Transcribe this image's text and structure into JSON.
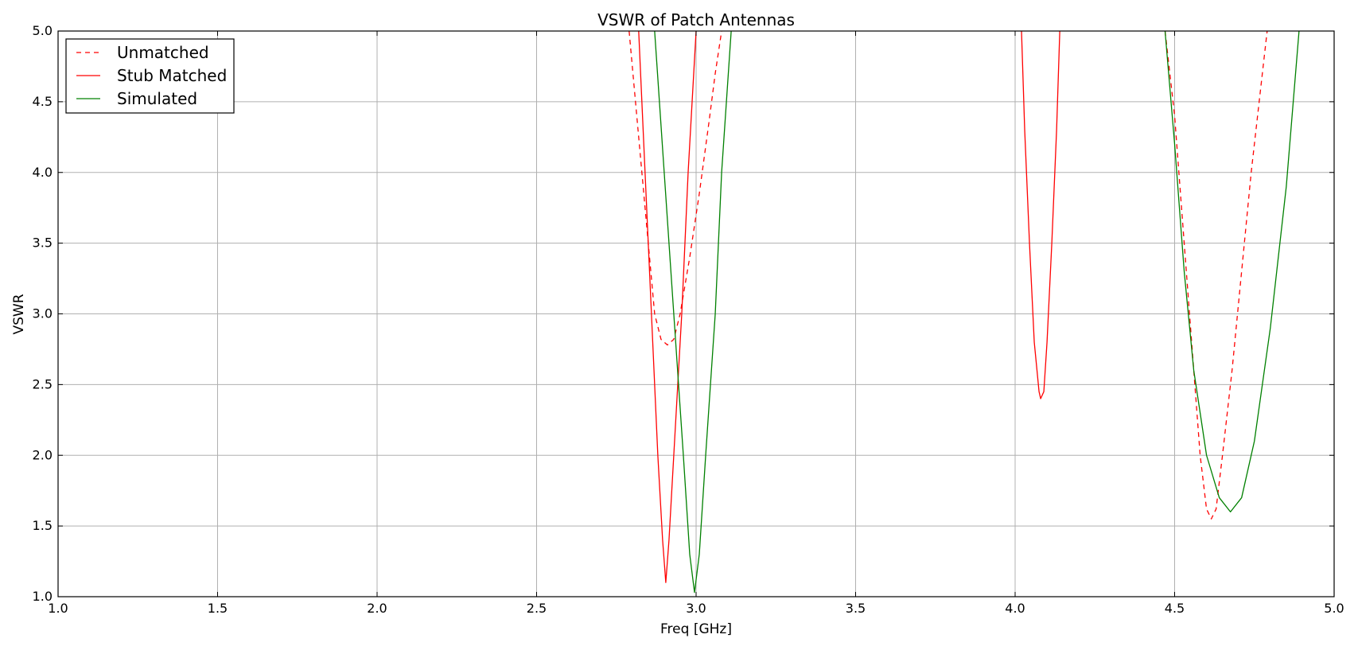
{
  "chart_data": {
    "type": "line",
    "title": "VSWR of Patch Antennas",
    "xlabel": "Freq [GHz]",
    "ylabel": "VSWR",
    "xlim": [
      1.0,
      5.0
    ],
    "ylim": [
      1.0,
      5.0
    ],
    "x_ticks": [
      "1.0",
      "1.5",
      "2.0",
      "2.5",
      "3.0",
      "3.5",
      "4.0",
      "4.5",
      "5.0"
    ],
    "y_ticks": [
      "1.0",
      "1.5",
      "2.0",
      "2.5",
      "3.0",
      "3.5",
      "4.0",
      "4.5",
      "5.0"
    ],
    "grid": true,
    "legend_position": "upper-left",
    "series": [
      {
        "name": "Unmatched",
        "color": "#ff0000",
        "style": "dashed",
        "segments": [
          [
            [
              2.79,
              5.0
            ],
            [
              2.81,
              4.5
            ],
            [
              2.83,
              4.0
            ],
            [
              2.85,
              3.5
            ],
            [
              2.87,
              3.0
            ],
            [
              2.89,
              2.82
            ],
            [
              2.91,
              2.78
            ],
            [
              2.93,
              2.82
            ],
            [
              2.95,
              3.0
            ],
            [
              2.98,
              3.4
            ],
            [
              3.01,
              3.85
            ],
            [
              3.04,
              4.35
            ],
            [
              3.06,
              4.7
            ],
            [
              3.08,
              5.0
            ]
          ],
          [
            [
              4.47,
              5.0
            ],
            [
              4.5,
              4.4
            ],
            [
              4.53,
              3.5
            ],
            [
              4.56,
              2.6
            ],
            [
              4.58,
              2.0
            ],
            [
              4.6,
              1.62
            ],
            [
              4.615,
              1.55
            ],
            [
              4.63,
              1.62
            ],
            [
              4.65,
              2.0
            ],
            [
              4.68,
              2.6
            ],
            [
              4.71,
              3.3
            ],
            [
              4.74,
              4.0
            ],
            [
              4.77,
              4.6
            ],
            [
              4.79,
              5.0
            ]
          ]
        ]
      },
      {
        "name": "Stub Matched",
        "color": "#ff0000",
        "style": "solid",
        "segments": [
          [
            [
              2.82,
              5.0
            ],
            [
              2.84,
              4.0
            ],
            [
              2.86,
              3.0
            ],
            [
              2.88,
              2.0
            ],
            [
              2.895,
              1.4
            ],
            [
              2.905,
              1.1
            ],
            [
              2.915,
              1.4
            ],
            [
              2.93,
              2.0
            ],
            [
              2.955,
              3.0
            ],
            [
              2.975,
              4.0
            ],
            [
              3.0,
              5.0
            ]
          ],
          [
            [
              4.02,
              5.0
            ],
            [
              4.03,
              4.3
            ],
            [
              4.045,
              3.5
            ],
            [
              4.06,
              2.8
            ],
            [
              4.075,
              2.45
            ],
            [
              4.08,
              2.4
            ],
            [
              4.09,
              2.45
            ],
            [
              4.1,
              2.8
            ],
            [
              4.115,
              3.5
            ],
            [
              4.13,
              4.3
            ],
            [
              4.14,
              5.0
            ]
          ]
        ]
      },
      {
        "name": "Simulated",
        "color": "#008000",
        "style": "solid",
        "segments": [
          [
            [
              2.87,
              5.0
            ],
            [
              2.9,
              4.0
            ],
            [
              2.93,
              3.0
            ],
            [
              2.96,
              2.0
            ],
            [
              2.98,
              1.3
            ],
            [
              2.995,
              1.03
            ],
            [
              3.01,
              1.3
            ],
            [
              3.03,
              2.0
            ],
            [
              3.06,
              3.0
            ],
            [
              3.08,
              4.0
            ],
            [
              3.11,
              5.0
            ]
          ],
          [
            [
              4.47,
              5.0
            ],
            [
              4.5,
              4.2
            ],
            [
              4.53,
              3.3
            ],
            [
              4.56,
              2.6
            ],
            [
              4.6,
              2.0
            ],
            [
              4.64,
              1.7
            ],
            [
              4.675,
              1.6
            ],
            [
              4.71,
              1.7
            ],
            [
              4.75,
              2.1
            ],
            [
              4.8,
              2.9
            ],
            [
              4.85,
              3.9
            ],
            [
              4.89,
              5.0
            ]
          ]
        ]
      }
    ]
  }
}
